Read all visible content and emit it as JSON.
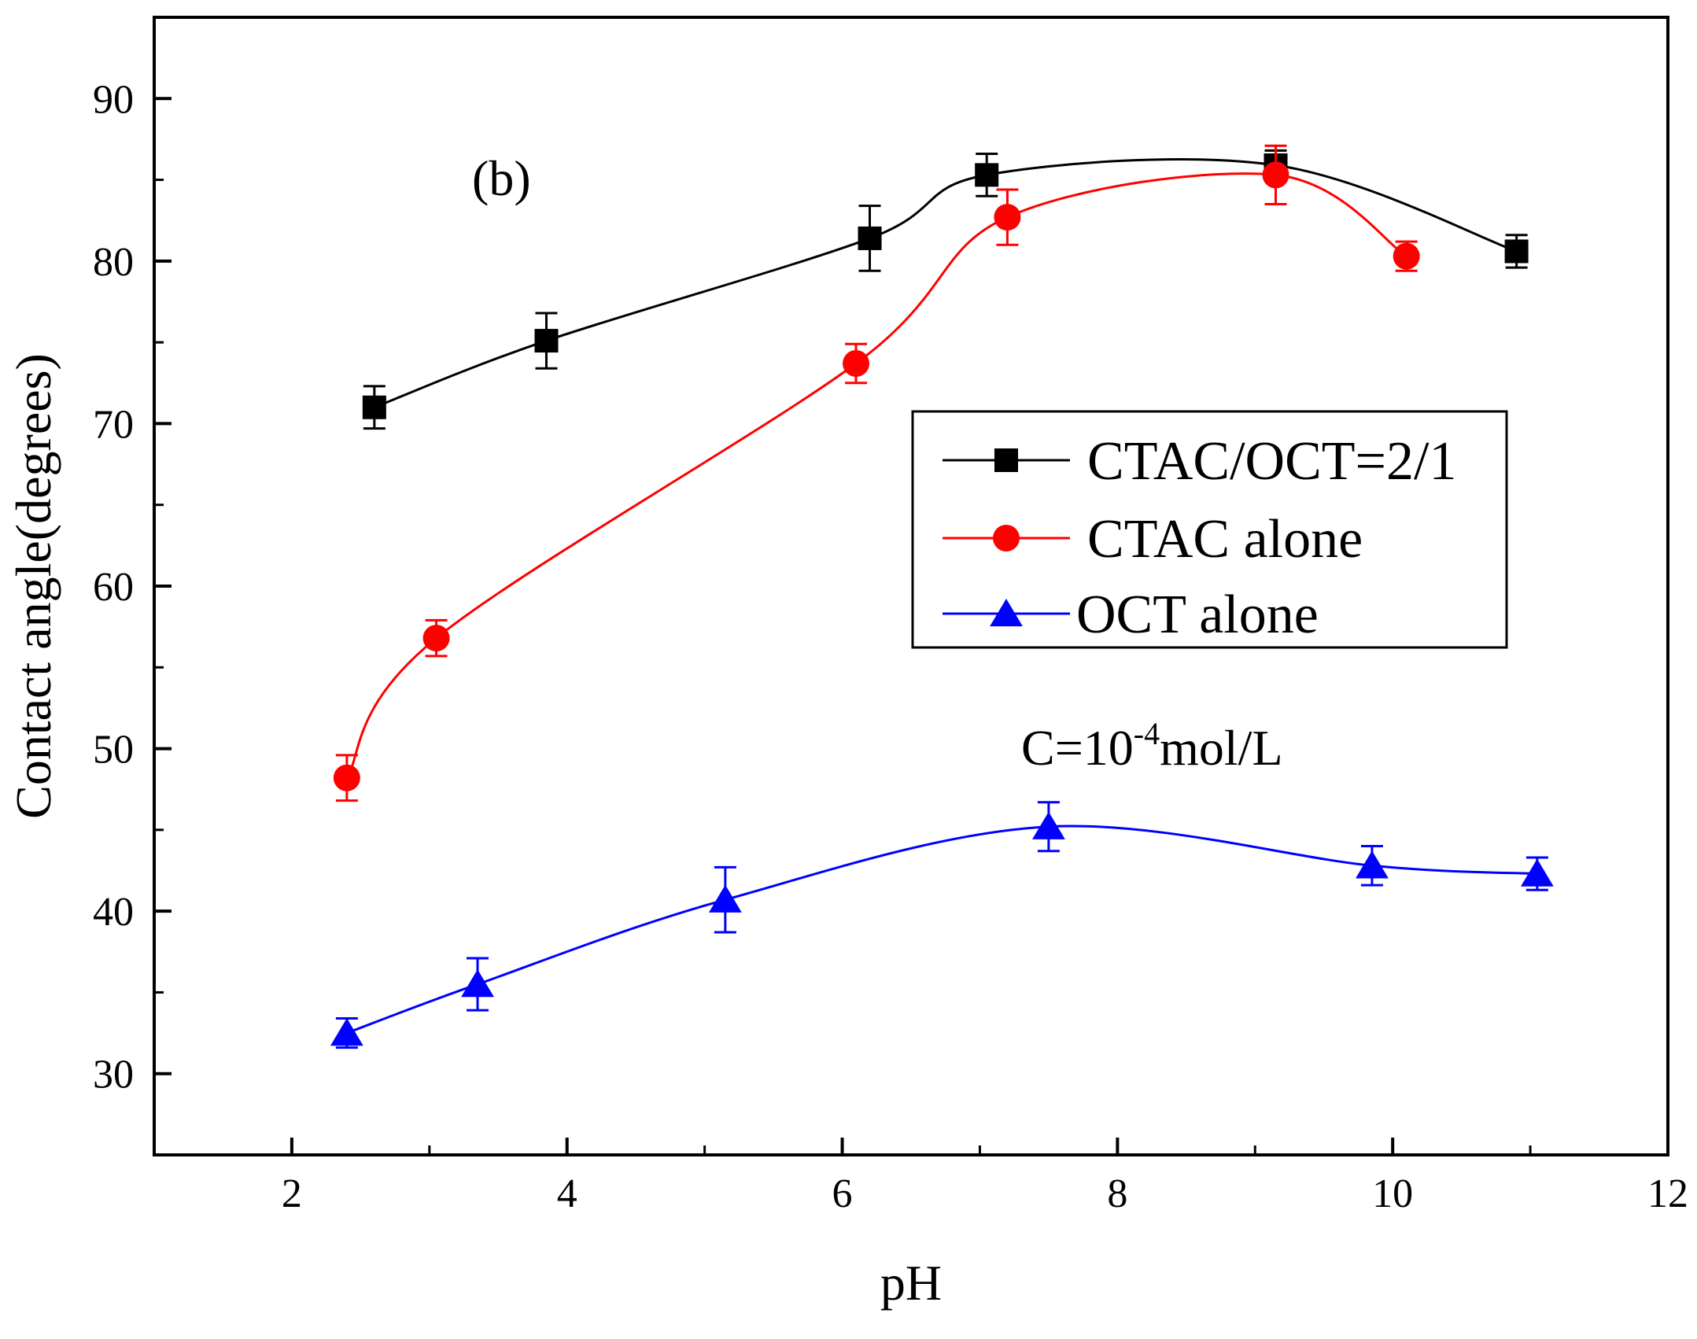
{
  "chart_data": {
    "type": "line",
    "title": "",
    "panel_label": "(b)",
    "xlabel": "pH",
    "ylabel": "Contact angle(degrees)",
    "xlim": [
      1,
      12
    ],
    "ylim": [
      25,
      95
    ],
    "x_ticks": [
      2,
      4,
      6,
      8,
      10,
      12
    ],
    "x_minor_ticks": [
      3,
      5,
      7,
      9,
      11
    ],
    "y_ticks": [
      30,
      40,
      50,
      60,
      70,
      80,
      90
    ],
    "y_minor_ticks": [
      35,
      45,
      55,
      65,
      75,
      85
    ],
    "grid": false,
    "legend_position": "center-right",
    "annotation": {
      "prefix": "C=10",
      "superscript": "-4",
      "suffix": "mol/L"
    },
    "series": [
      {
        "name": "CTAC/OCT=2/1",
        "color": "#000000",
        "marker": "square",
        "points": [
          {
            "x": 2.6,
            "y": 71.0,
            "err": 1.3
          },
          {
            "x": 3.85,
            "y": 75.1,
            "err": 1.7
          },
          {
            "x": 6.2,
            "y": 81.4,
            "err": 2.0
          },
          {
            "x": 7.05,
            "y": 85.3,
            "err": 1.3
          },
          {
            "x": 9.15,
            "y": 85.9,
            "err": 0.9
          },
          {
            "x": 10.9,
            "y": 80.6,
            "err": 1.0
          }
        ]
      },
      {
        "name": "CTAC alone",
        "color": "#ff0000",
        "marker": "circle",
        "points": [
          {
            "x": 2.4,
            "y": 48.2,
            "err": 1.4
          },
          {
            "x": 3.05,
            "y": 56.8,
            "err": 1.1
          },
          {
            "x": 6.1,
            "y": 73.7,
            "err": 1.2
          },
          {
            "x": 7.2,
            "y": 82.7,
            "err": 1.7
          },
          {
            "x": 9.15,
            "y": 85.3,
            "err": 1.8
          },
          {
            "x": 10.1,
            "y": 80.3,
            "err": 0.9
          }
        ]
      },
      {
        "name": "OCT alone",
        "color": "#0000ff",
        "marker": "triangle",
        "points": [
          {
            "x": 2.4,
            "y": 32.5,
            "err": 0.9
          },
          {
            "x": 3.35,
            "y": 35.5,
            "err": 1.6
          },
          {
            "x": 5.15,
            "y": 40.7,
            "err": 2.0
          },
          {
            "x": 7.5,
            "y": 45.2,
            "err": 1.5
          },
          {
            "x": 9.85,
            "y": 42.8,
            "err": 1.2
          },
          {
            "x": 11.05,
            "y": 42.3,
            "err": 1.0
          }
        ]
      }
    ]
  }
}
